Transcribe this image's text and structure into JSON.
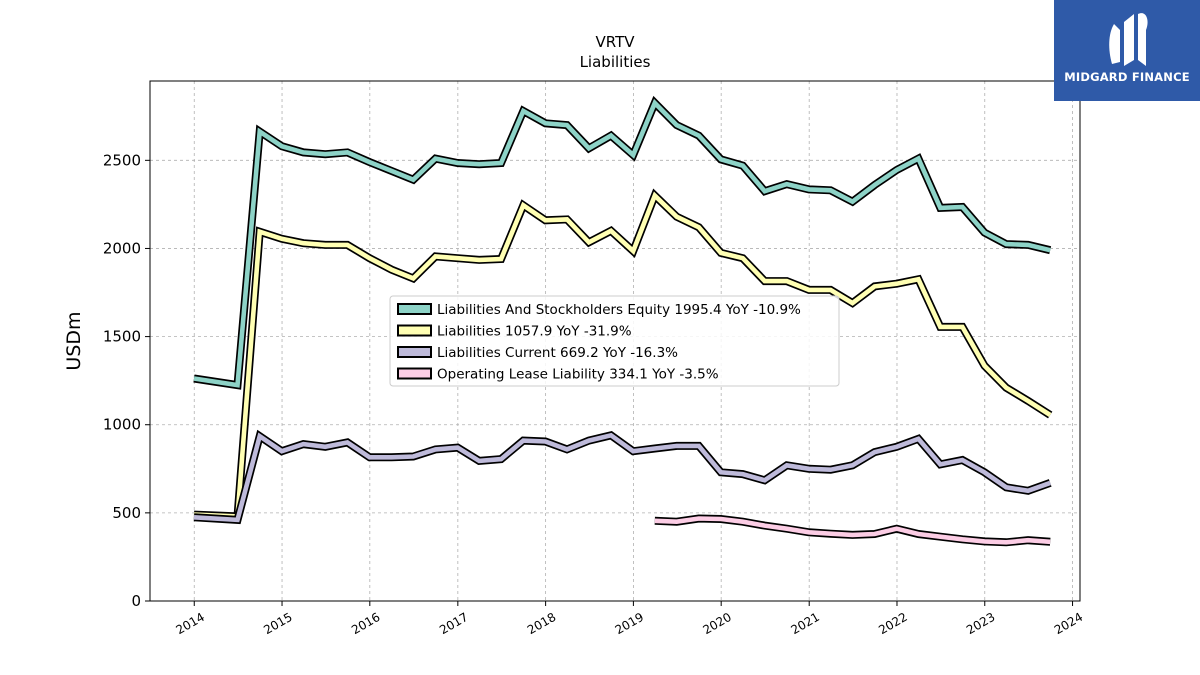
{
  "brand": {
    "name": "MIDGARD FINANCE",
    "bg_color": "#2f5aa8",
    "icon": "midgard-logo-icon"
  },
  "chart_data": {
    "type": "line",
    "title": "VRTV",
    "subtitle": "Liabilities",
    "ylabel": "USDm",
    "xlabel": "",
    "ylim": [
      0,
      2950
    ],
    "xlim": [
      "2013-07-01",
      "2024-02-01"
    ],
    "y_ticks": [
      0,
      500,
      1000,
      1500,
      2000,
      2500
    ],
    "x_ticks": [
      "2014",
      "2015",
      "2016",
      "2017",
      "2018",
      "2019",
      "2020",
      "2021",
      "2022",
      "2023",
      "2024"
    ],
    "grid": true,
    "legend_position": "center",
    "series": [
      {
        "name": "Liabilities And Stockholders Equity",
        "legend": "Liabilities And Stockholders Equity  1995.4 YoY -10.9%",
        "color": "#8dd3c7",
        "points": [
          [
            "2013-12-31",
            1262
          ],
          [
            "2014-06-30",
            1225
          ],
          [
            "2014-09-30",
            2663
          ],
          [
            "2014-12-31",
            2580
          ],
          [
            "2015-03-31",
            2545
          ],
          [
            "2015-06-30",
            2535
          ],
          [
            "2015-09-30",
            2545
          ],
          [
            "2015-12-31",
            2490
          ],
          [
            "2016-03-31",
            2440
          ],
          [
            "2016-06-30",
            2390
          ],
          [
            "2016-09-30",
            2510
          ],
          [
            "2016-12-31",
            2485
          ],
          [
            "2017-03-31",
            2478
          ],
          [
            "2017-06-30",
            2485
          ],
          [
            "2017-09-30",
            2780
          ],
          [
            "2017-12-31",
            2710
          ],
          [
            "2018-03-31",
            2700
          ],
          [
            "2018-06-30",
            2568
          ],
          [
            "2018-09-30",
            2640
          ],
          [
            "2018-12-31",
            2530
          ],
          [
            "2019-03-31",
            2825
          ],
          [
            "2019-06-30",
            2700
          ],
          [
            "2019-09-30",
            2640
          ],
          [
            "2019-12-31",
            2505
          ],
          [
            "2020-03-31",
            2470
          ],
          [
            "2020-06-30",
            2325
          ],
          [
            "2020-09-30",
            2365
          ],
          [
            "2020-12-31",
            2335
          ],
          [
            "2021-03-31",
            2330
          ],
          [
            "2021-06-30",
            2265
          ],
          [
            "2021-09-30",
            2360
          ],
          [
            "2021-12-31",
            2445
          ],
          [
            "2022-03-31",
            2510
          ],
          [
            "2022-06-30",
            2230
          ],
          [
            "2022-09-30",
            2235
          ],
          [
            "2022-12-31",
            2090
          ],
          [
            "2023-03-31",
            2025
          ],
          [
            "2023-06-30",
            2020
          ],
          [
            "2023-09-30",
            1990
          ]
        ]
      },
      {
        "name": "Liabilities",
        "legend": "Liabilities  1057.9 YoY -31.9%",
        "color": "#ffffb3",
        "points": [
          [
            "2013-12-31",
            490
          ],
          [
            "2014-06-30",
            480
          ],
          [
            "2014-09-30",
            2095
          ],
          [
            "2014-12-31",
            2055
          ],
          [
            "2015-03-31",
            2030
          ],
          [
            "2015-06-30",
            2020
          ],
          [
            "2015-09-30",
            2020
          ],
          [
            "2015-12-31",
            1945
          ],
          [
            "2016-03-31",
            1880
          ],
          [
            "2016-06-30",
            1830
          ],
          [
            "2016-09-30",
            1955
          ],
          [
            "2016-12-31",
            1945
          ],
          [
            "2017-03-31",
            1935
          ],
          [
            "2017-06-30",
            1940
          ],
          [
            "2017-09-30",
            2245
          ],
          [
            "2017-12-31",
            2160
          ],
          [
            "2018-03-31",
            2165
          ],
          [
            "2018-06-30",
            2035
          ],
          [
            "2018-09-30",
            2100
          ],
          [
            "2018-12-31",
            1985
          ],
          [
            "2019-03-31",
            2300
          ],
          [
            "2019-06-30",
            2180
          ],
          [
            "2019-09-30",
            2120
          ],
          [
            "2019-12-31",
            1975
          ],
          [
            "2020-03-31",
            1945
          ],
          [
            "2020-06-30",
            1815
          ],
          [
            "2020-09-30",
            1815
          ],
          [
            "2020-12-31",
            1765
          ],
          [
            "2021-03-31",
            1765
          ],
          [
            "2021-06-30",
            1690
          ],
          [
            "2021-09-30",
            1785
          ],
          [
            "2021-12-31",
            1800
          ],
          [
            "2022-03-31",
            1825
          ],
          [
            "2022-06-30",
            1555
          ],
          [
            "2022-09-30",
            1555
          ],
          [
            "2022-12-31",
            1335
          ],
          [
            "2023-03-31",
            1210
          ],
          [
            "2023-06-30",
            1135
          ],
          [
            "2023-09-30",
            1055
          ]
        ]
      },
      {
        "name": "Liabilities Current",
        "legend": "Liabilities Current  669.2 YoY -16.3%",
        "color": "#bebada",
        "points": [
          [
            "2013-12-31",
            475
          ],
          [
            "2014-06-30",
            460
          ],
          [
            "2014-09-30",
            935
          ],
          [
            "2014-12-31",
            850
          ],
          [
            "2015-03-31",
            890
          ],
          [
            "2015-06-30",
            875
          ],
          [
            "2015-09-30",
            900
          ],
          [
            "2015-12-31",
            815
          ],
          [
            "2016-03-31",
            815
          ],
          [
            "2016-06-30",
            820
          ],
          [
            "2016-09-30",
            860
          ],
          [
            "2016-12-31",
            870
          ],
          [
            "2017-03-31",
            795
          ],
          [
            "2017-06-30",
            805
          ],
          [
            "2017-09-30",
            910
          ],
          [
            "2017-12-31",
            905
          ],
          [
            "2018-03-31",
            860
          ],
          [
            "2018-06-30",
            910
          ],
          [
            "2018-09-30",
            940
          ],
          [
            "2018-12-31",
            850
          ],
          [
            "2019-03-31",
            865
          ],
          [
            "2019-06-30",
            880
          ],
          [
            "2019-09-30",
            880
          ],
          [
            "2019-12-31",
            730
          ],
          [
            "2020-03-31",
            720
          ],
          [
            "2020-06-30",
            685
          ],
          [
            "2020-09-30",
            770
          ],
          [
            "2020-12-31",
            750
          ],
          [
            "2021-03-31",
            745
          ],
          [
            "2021-06-30",
            770
          ],
          [
            "2021-09-30",
            845
          ],
          [
            "2021-12-31",
            875
          ],
          [
            "2022-03-31",
            920
          ],
          [
            "2022-06-30",
            775
          ],
          [
            "2022-09-30",
            800
          ],
          [
            "2022-12-31",
            730
          ],
          [
            "2023-03-31",
            645
          ],
          [
            "2023-06-30",
            625
          ],
          [
            "2023-09-30",
            670
          ]
        ]
      },
      {
        "name": "Operating Lease Liability",
        "legend": "Operating Lease Liability  334.1 YoY -3.5%",
        "color": "#fccde5",
        "points": [
          [
            "2019-03-31",
            455
          ],
          [
            "2019-06-30",
            450
          ],
          [
            "2019-09-30",
            468
          ],
          [
            "2019-12-31",
            465
          ],
          [
            "2020-03-31",
            450
          ],
          [
            "2020-06-30",
            428
          ],
          [
            "2020-09-30",
            410
          ],
          [
            "2020-12-31",
            390
          ],
          [
            "2021-03-31",
            382
          ],
          [
            "2021-06-30",
            375
          ],
          [
            "2021-09-30",
            380
          ],
          [
            "2021-12-31",
            410
          ],
          [
            "2022-03-31",
            380
          ],
          [
            "2022-06-30",
            365
          ],
          [
            "2022-09-30",
            350
          ],
          [
            "2022-12-31",
            338
          ],
          [
            "2023-03-31",
            333
          ],
          [
            "2023-06-30",
            345
          ],
          [
            "2023-09-30",
            336
          ]
        ]
      }
    ]
  }
}
